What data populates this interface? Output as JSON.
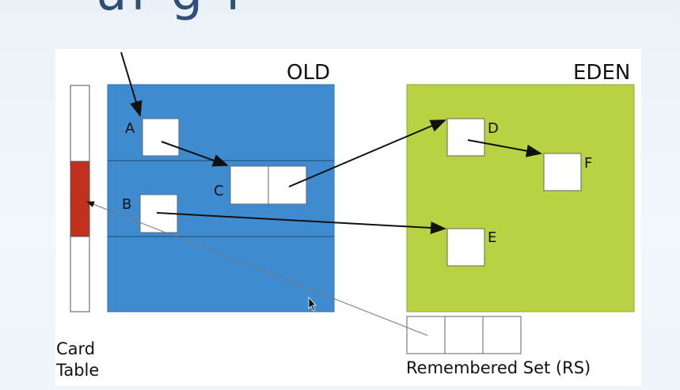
{
  "slide_title_fragment": "uf  g  f",
  "regions": {
    "old_label": "OLD",
    "eden_label": "EDEN"
  },
  "objects": {
    "a": "A",
    "b": "B",
    "c": "C",
    "d": "D",
    "e": "E",
    "f": "F"
  },
  "card_table": {
    "label_line1": "Card",
    "label_line2": "Table"
  },
  "remembered_set": {
    "label": "Remembered Set (RS)"
  },
  "colors": {
    "old_region": "#3e8bd0",
    "eden_region": "#b9d241",
    "dirty_card": "#c1301c"
  },
  "icons": {
    "cursor": "mouse-pointer-icon"
  }
}
